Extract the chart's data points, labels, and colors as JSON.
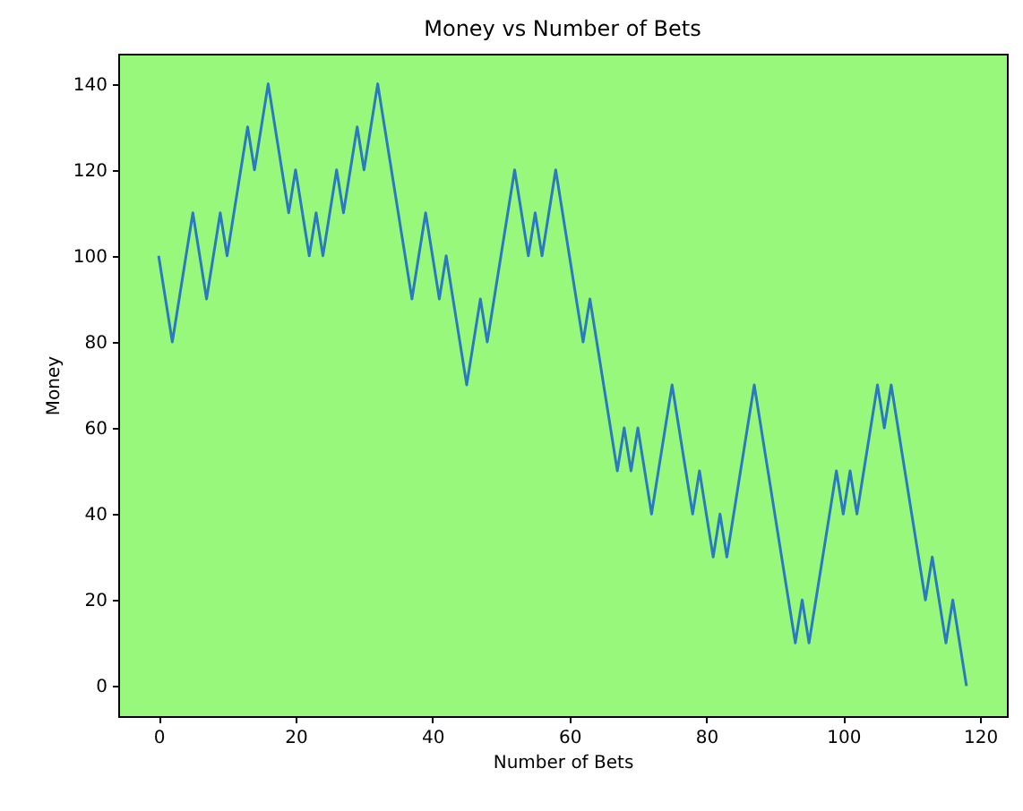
{
  "chart_data": {
    "type": "line",
    "title": "Money vs Number of Bets",
    "xlabel": "Number of Bets",
    "ylabel": "Money",
    "x": [
      0,
      1,
      2,
      3,
      4,
      5,
      6,
      7,
      8,
      9,
      10,
      11,
      12,
      13,
      14,
      15,
      16,
      17,
      18,
      19,
      20,
      21,
      22,
      23,
      24,
      25,
      26,
      27,
      28,
      29,
      30,
      31,
      32,
      33,
      34,
      35,
      36,
      37,
      38,
      39,
      40,
      41,
      42,
      43,
      44,
      45,
      46,
      47,
      48,
      49,
      50,
      51,
      52,
      53,
      54,
      55,
      56,
      57,
      58,
      59,
      60,
      61,
      62,
      63,
      64,
      65,
      66,
      67,
      68,
      69,
      70,
      71,
      72,
      73,
      74,
      75,
      76,
      77,
      78,
      79,
      80,
      81,
      82,
      83,
      84,
      85,
      86,
      87,
      88,
      89,
      90,
      91,
      92,
      93,
      94,
      95,
      96,
      97,
      98,
      99,
      100,
      101,
      102,
      103,
      104,
      105,
      106,
      107,
      108,
      109,
      110,
      111,
      112,
      113,
      114,
      115,
      116,
      117,
      118
    ],
    "series": [
      {
        "color": "#2a7abf",
        "values": [
          100,
          90,
          80,
          90,
          100,
          110,
          100,
          90,
          100,
          110,
          100,
          110,
          120,
          130,
          120,
          130,
          140,
          130,
          120,
          110,
          120,
          110,
          100,
          110,
          100,
          110,
          120,
          110,
          120,
          130,
          120,
          130,
          140,
          130,
          120,
          110,
          100,
          90,
          100,
          110,
          100,
          90,
          100,
          90,
          80,
          70,
          80,
          90,
          80,
          90,
          100,
          110,
          120,
          110,
          100,
          110,
          100,
          110,
          120,
          110,
          100,
          90,
          80,
          90,
          80,
          70,
          60,
          50,
          60,
          50,
          60,
          50,
          40,
          50,
          60,
          70,
          60,
          50,
          40,
          50,
          40,
          30,
          40,
          30,
          40,
          50,
          60,
          70,
          60,
          50,
          40,
          30,
          20,
          10,
          20,
          10,
          20,
          30,
          40,
          50,
          40,
          50,
          40,
          50,
          60,
          70,
          60,
          70,
          60,
          50,
          40,
          30,
          20,
          30,
          20,
          10,
          20,
          10,
          0
        ]
      }
    ],
    "xlim": [
      -5.9,
      123.9
    ],
    "ylim": [
      -7,
      147
    ],
    "xticks": [
      0,
      20,
      40,
      60,
      80,
      100,
      120
    ],
    "yticks": [
      0,
      20,
      40,
      60,
      80,
      100,
      120,
      140
    ],
    "grid": false,
    "marker": "none",
    "line_style": "solid"
  }
}
